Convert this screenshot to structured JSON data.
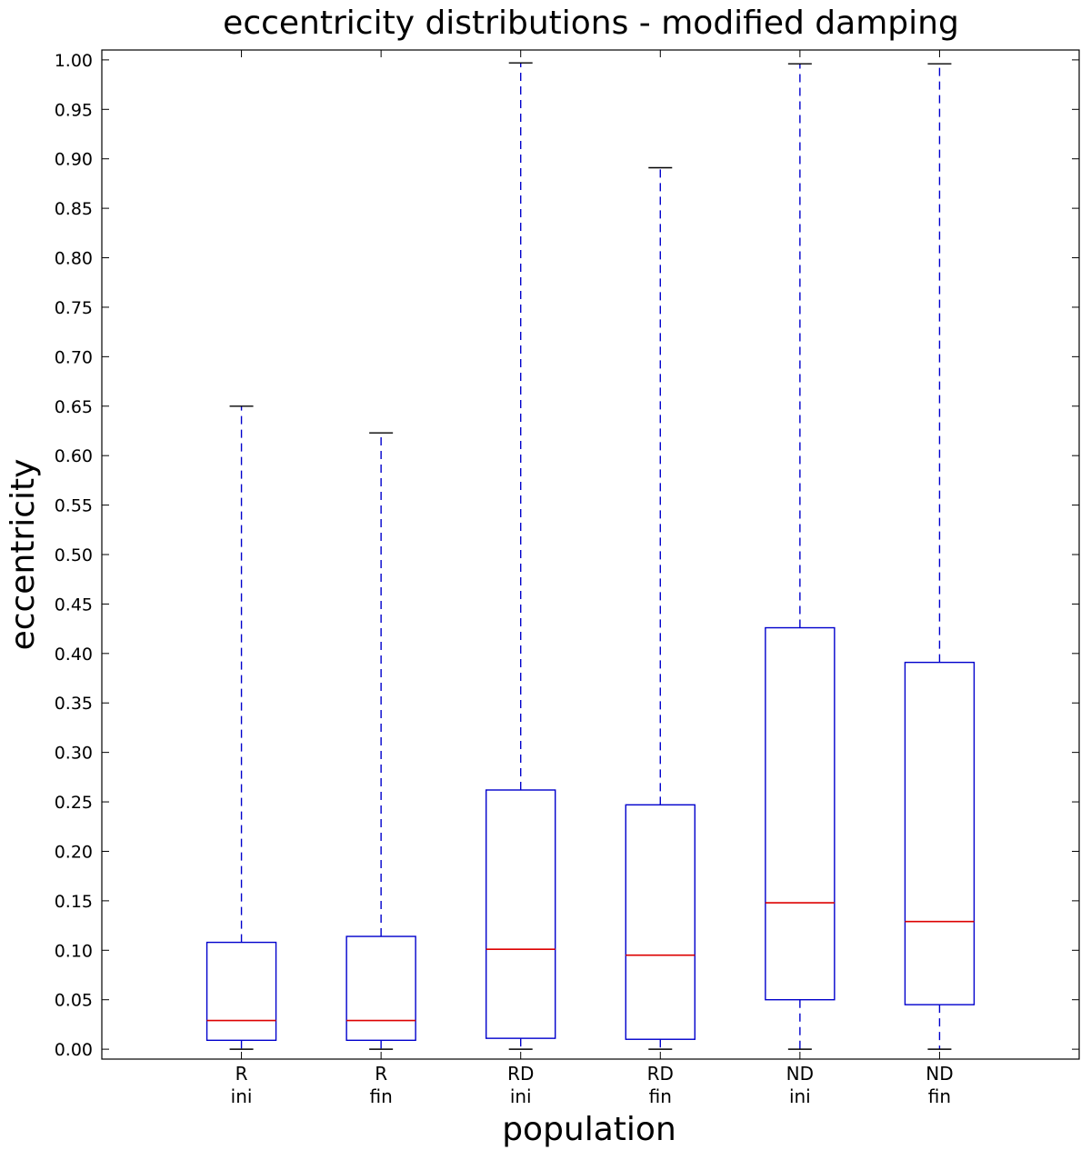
{
  "chart_data": {
    "type": "boxplot",
    "title": "eccentricity distributions - modified damping",
    "xlabel": "population",
    "ylabel": "eccentricity",
    "ylim": [
      -0.01,
      1.01
    ],
    "yticks": [
      "0.00",
      "0.05",
      "0.10",
      "0.15",
      "0.20",
      "0.25",
      "0.30",
      "0.35",
      "0.40",
      "0.45",
      "0.50",
      "0.55",
      "0.60",
      "0.65",
      "0.70",
      "0.75",
      "0.80",
      "0.85",
      "0.90",
      "0.95",
      "1.00"
    ],
    "categories": [
      {
        "line1": "R",
        "line2": "ini"
      },
      {
        "line1": "R",
        "line2": "fin"
      },
      {
        "line1": "RD",
        "line2": "ini"
      },
      {
        "line1": "RD",
        "line2": "fin"
      },
      {
        "line1": "ND",
        "line2": "ini"
      },
      {
        "line1": "ND",
        "line2": "fin"
      }
    ],
    "boxes": [
      {
        "name": "R ini",
        "whisker_low": 0.0,
        "q1": 0.009,
        "median": 0.029,
        "q3": 0.108,
        "whisker_high": 0.65
      },
      {
        "name": "R fin",
        "whisker_low": 0.0,
        "q1": 0.009,
        "median": 0.029,
        "q3": 0.114,
        "whisker_high": 0.623
      },
      {
        "name": "RD ini",
        "whisker_low": 0.0,
        "q1": 0.011,
        "median": 0.101,
        "q3": 0.262,
        "whisker_high": 0.997
      },
      {
        "name": "RD fin",
        "whisker_low": 0.0,
        "q1": 0.01,
        "median": 0.095,
        "q3": 0.247,
        "whisker_high": 0.891
      },
      {
        "name": "ND ini",
        "whisker_low": 0.0,
        "q1": 0.05,
        "median": 0.148,
        "q3": 0.426,
        "whisker_high": 0.996
      },
      {
        "name": "ND fin",
        "whisker_low": 0.0,
        "q1": 0.045,
        "median": 0.129,
        "q3": 0.391,
        "whisker_high": 0.996
      }
    ],
    "colors": {
      "box": "#0000cc",
      "median": "#dd0000",
      "axis": "#000000"
    }
  }
}
